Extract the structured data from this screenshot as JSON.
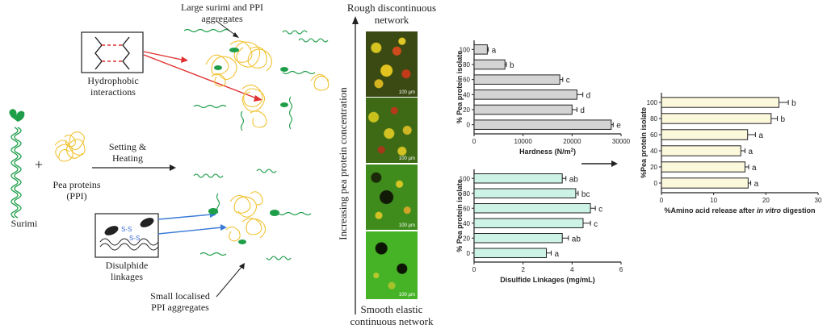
{
  "schematic": {
    "surimi_label": "Surimi",
    "plus": "+",
    "pea_label_1": "Pea proteins",
    "pea_label_2": "(PPI)",
    "process_1": "Setting &",
    "process_2": "Heating",
    "hydrophobic_1": "Hydrophobic",
    "hydrophobic_2": "interactions",
    "large_agg_1": "Large surimi and PPI",
    "large_agg_2": "aggregates",
    "disulphide_1": "Disulphide",
    "disulphide_2": "linkages",
    "ss_bond": "S-S",
    "small_agg_1": "Small localised",
    "small_agg_2": "PPI aggregates"
  },
  "micrographs": {
    "top_label_1": "Rough discontinuous",
    "top_label_2": "network",
    "bottom_label_1": "Smooth elastic",
    "bottom_label_2": "continuous network",
    "axis_label": "Increasing pea protein concentration",
    "scale_bar": "100 µm",
    "panels": 4
  },
  "chart_data": [
    {
      "type": "bar",
      "orientation": "horizontal",
      "categories": [
        "100",
        "80",
        "60",
        "40",
        "20",
        "0"
      ],
      "values": [
        2700,
        6300,
        17500,
        21000,
        20000,
        28000
      ],
      "errors": [
        200,
        300,
        600,
        1200,
        1000,
        400
      ],
      "letters": [
        "a",
        "b",
        "c",
        "d",
        "d",
        "e"
      ],
      "xlabel_prefix": "Hardness (N/m",
      "xlabel_sup": "2",
      "xlabel_suffix": ")",
      "ylabel": "% Pea protein isolate",
      "xlim": [
        0,
        30000
      ],
      "xticks": [
        "0",
        "10000",
        "20000",
        "30000"
      ],
      "bar_color": "#d4d4d4"
    },
    {
      "type": "bar",
      "orientation": "horizontal",
      "categories": [
        "100",
        "80",
        "60",
        "40",
        "20",
        "0"
      ],
      "values": [
        3.6,
        4.15,
        4.75,
        4.45,
        3.6,
        2.95
      ],
      "errors": [
        0.15,
        0.1,
        0.2,
        0.3,
        0.25,
        0.2
      ],
      "letters": [
        "ab",
        "bc",
        "c",
        "c",
        "ab",
        "a"
      ],
      "xlabel": "Disulfide Linkages (mg/mL)",
      "ylabel": "% Pea protein isolate",
      "xlim": [
        0,
        6
      ],
      "xticks": [
        "0",
        "2",
        "4",
        "6"
      ],
      "bar_color": "#cdf3e7"
    },
    {
      "type": "bar",
      "orientation": "horizontal",
      "categories": [
        "100",
        "80",
        "60",
        "40",
        "20",
        "0"
      ],
      "values": [
        22.5,
        21,
        16.5,
        15.2,
        16,
        16.6
      ],
      "errors": [
        1.8,
        1.2,
        1.5,
        0.8,
        0.7,
        0.5
      ],
      "letters": [
        "b",
        "b",
        "a",
        "a",
        "a",
        "a"
      ],
      "xlabel_prefix": "%Amino acid release after ",
      "xlabel_italic": "in vitro",
      "xlabel_suffix": " digestion",
      "ylabel": "%Pea protein isolate",
      "xlim": [
        0,
        30
      ],
      "xticks": [
        "0",
        "10",
        "20",
        "30"
      ],
      "bar_color": "#fbf8dc"
    }
  ]
}
